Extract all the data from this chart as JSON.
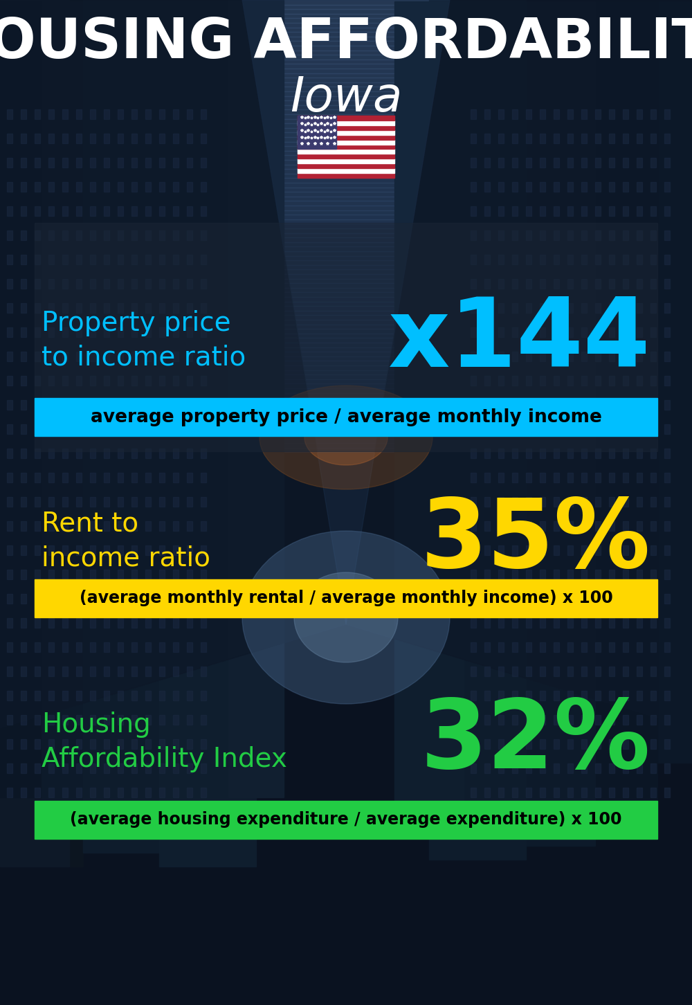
{
  "title_line1": "HOUSING AFFORDABILITY",
  "title_line2": "Iowa",
  "section1_label": "Property price\nto income ratio",
  "section1_value": "x144",
  "section1_label_color": "#00BFFF",
  "section1_value_color": "#00BFFF",
  "section1_formula": "average property price / average monthly income",
  "section1_formula_bg": "#00BFFF",
  "section1_formula_color": "#000000",
  "section2_label": "Rent to\nincome ratio",
  "section2_value": "35%",
  "section2_label_color": "#FFD700",
  "section2_value_color": "#FFD700",
  "section2_formula": "(average monthly rental / average monthly income) x 100",
  "section2_formula_bg": "#FFD700",
  "section2_formula_color": "#000000",
  "section3_label": "Housing\nAffordability Index",
  "section3_value": "32%",
  "section3_label_color": "#22CC44",
  "section3_value_color": "#22CC44",
  "section3_formula": "(average housing expenditure / average expenditure) x 100",
  "section3_formula_bg": "#22CC44",
  "section3_formula_color": "#000000",
  "bg_color": "#0a1220",
  "title_color": "#FFFFFF",
  "subtitle_color": "#FFFFFF"
}
